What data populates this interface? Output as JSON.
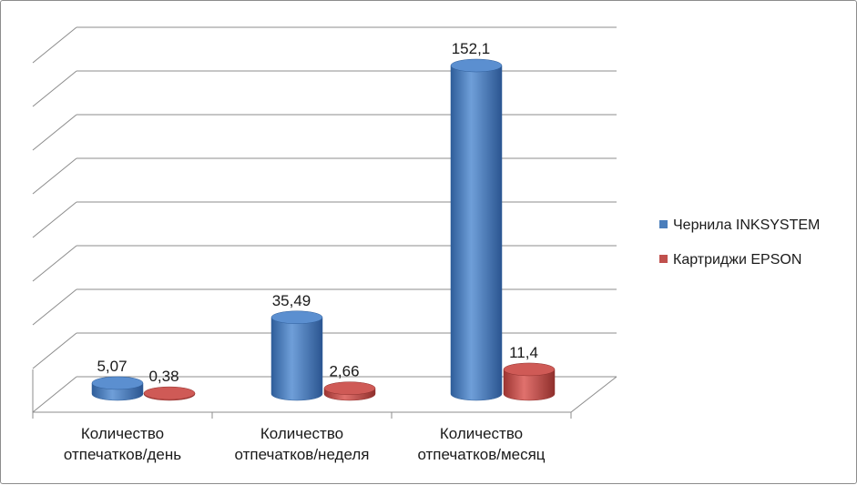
{
  "chart_data": {
    "type": "bar",
    "style": "3d-cylinder",
    "categories": [
      [
        "Количество",
        "отпечатков/день"
      ],
      [
        "Количество",
        "отпечатков/неделя"
      ],
      [
        "Количество",
        "отпечатков/месяц"
      ]
    ],
    "series": [
      {
        "name": "Чернила INKSYSTEM",
        "values": [
          5.07,
          35.49,
          152.1
        ],
        "labels": [
          "5,07",
          "35,49",
          "152,1"
        ],
        "color": "#4a7ebb"
      },
      {
        "name": "Картриджи EPSON",
        "values": [
          0.38,
          2.66,
          11.4
        ],
        "labels": [
          "0,38",
          "2,66",
          "11,4"
        ],
        "color": "#c0504d"
      }
    ],
    "ylim": [
      0,
      160
    ],
    "y_tick_labels_shown": false,
    "grid": true,
    "legend": "right"
  }
}
